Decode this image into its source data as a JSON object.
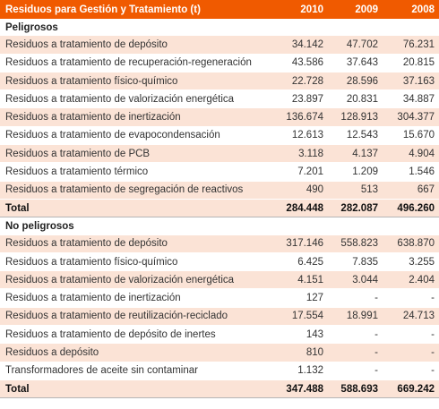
{
  "header": {
    "title": "Residuos para Gestión y Tratamiento (t)",
    "years": [
      "2010",
      "2009",
      "2008"
    ]
  },
  "peligrosos": {
    "title": "Peligrosos",
    "rows": [
      {
        "label": "Residuos a tratamiento de depósito",
        "values": [
          "34.142",
          "47.702",
          "76.231"
        ]
      },
      {
        "label": "Residuos a tratamiento de recuperación-regeneración",
        "values": [
          "43.586",
          "37.643",
          "20.815"
        ]
      },
      {
        "label": "Residuos a tratamiento físico-químico",
        "values": [
          "22.728",
          "28.596",
          "37.163"
        ]
      },
      {
        "label": "Residuos a tratamiento de valorización energética",
        "values": [
          "23.897",
          "20.831",
          "34.887"
        ]
      },
      {
        "label": "Residuos a tratamiento de inertización",
        "values": [
          "136.674",
          "128.913",
          "304.377"
        ]
      },
      {
        "label": "Residuos a tratamiento de evapocondensación",
        "values": [
          "12.613",
          "12.543",
          "15.670"
        ]
      },
      {
        "label": "Residuos a tratamiento de PCB",
        "values": [
          "3.118",
          "4.137",
          "4.904"
        ]
      },
      {
        "label": "Residuos a tratamiento térmico",
        "values": [
          "7.201",
          "1.209",
          "1.546"
        ]
      },
      {
        "label": "Residuos a tratamiento de segregación de reactivos",
        "values": [
          "490",
          "513",
          "667"
        ]
      }
    ],
    "total": {
      "label": "Total",
      "values": [
        "284.448",
        "282.087",
        "496.260"
      ]
    }
  },
  "no_peligrosos": {
    "title": "No peligrosos",
    "rows": [
      {
        "label": "Residuos a tratamiento de depósito",
        "values": [
          "317.146",
          "558.823",
          "638.870"
        ]
      },
      {
        "label": "Residuos a tratamiento físico-químico",
        "values": [
          "6.425",
          "7.835",
          "3.255"
        ]
      },
      {
        "label": "Residuos a tratamiento de valorización energética",
        "values": [
          "4.151",
          "3.044",
          "2.404"
        ]
      },
      {
        "label": "Residuos a tratamiento de inertización",
        "values": [
          "127",
          "-",
          "-"
        ]
      },
      {
        "label": "Residuos a tratamiento de reutilización-reciclado",
        "values": [
          "17.554",
          "18.991",
          "24.713"
        ]
      },
      {
        "label": "Residuos a tratamiento de depósito de inertes",
        "values": [
          "143",
          "-",
          "-"
        ]
      },
      {
        "label": "Residuos a depósito",
        "values": [
          "810",
          "-",
          "-"
        ]
      },
      {
        "label": "Transformadores de aceite sin contaminar",
        "values": [
          "1.132",
          "-",
          "-"
        ]
      }
    ],
    "total": {
      "label": "Total",
      "values": [
        "347.488",
        "588.693",
        "669.242"
      ]
    }
  }
}
